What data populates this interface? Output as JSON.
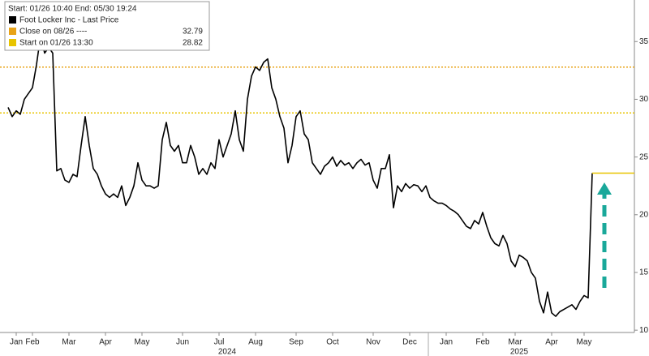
{
  "chart_data": {
    "type": "line",
    "legend_header": "Start: 01/26 10:40 End: 05/30 19:24",
    "categories": [
      null,
      null,
      "Jan",
      null,
      null,
      null,
      "Feb",
      null,
      null,
      null,
      null,
      null,
      null,
      null,
      null,
      "Mar",
      null,
      null,
      null,
      null,
      null,
      null,
      null,
      null,
      "Apr",
      null,
      null,
      null,
      null,
      null,
      null,
      null,
      null,
      "May",
      null,
      null,
      null,
      null,
      null,
      null,
      null,
      null,
      null,
      "Jun",
      null,
      null,
      null,
      null,
      null,
      null,
      null,
      null,
      "Jul",
      null,
      null,
      null,
      null,
      null,
      null,
      null,
      null,
      "Aug",
      null,
      null,
      null,
      null,
      null,
      null,
      null,
      null,
      null,
      "Sep",
      null,
      null,
      null,
      null,
      null,
      null,
      null,
      null,
      "Oct",
      null,
      null,
      null,
      null,
      null,
      null,
      null,
      null,
      null,
      "Nov",
      null,
      null,
      null,
      null,
      null,
      null,
      null,
      null,
      "Dec",
      null,
      null,
      null,
      null,
      null,
      null,
      null,
      null,
      "Jan",
      null,
      null,
      null,
      null,
      null,
      null,
      null,
      null,
      "Feb",
      null,
      null,
      null,
      null,
      null,
      null,
      null,
      "Mar",
      null,
      null,
      null,
      null,
      null,
      null,
      null,
      null,
      "Apr",
      null,
      null,
      null,
      null,
      null,
      null,
      null,
      "May",
      null,
      null
    ],
    "years": [
      "2024",
      "2025"
    ],
    "series": [
      {
        "name": "Foot Locker Inc - Last Price",
        "color": "#000000",
        "values": [
          29.3,
          28.5,
          29,
          28.7,
          30,
          30.5,
          31,
          33,
          35.5,
          34,
          34.5,
          34,
          23.8,
          24,
          23,
          22.8,
          23.5,
          23.3,
          26,
          28.5,
          26,
          24,
          23.5,
          22.5,
          21.8,
          21.5,
          21.8,
          21.5,
          22.5,
          20.8,
          21.5,
          22.5,
          24.5,
          23,
          22.5,
          22.5,
          22.3,
          22.5,
          26.5,
          28,
          26,
          25.5,
          26,
          24.5,
          24.5,
          26,
          25,
          23.5,
          24,
          23.5,
          24.5,
          24,
          26.5,
          25,
          26,
          27,
          29,
          26.5,
          25.5,
          30,
          32,
          32.8,
          32.5,
          33.2,
          33.5,
          31,
          30,
          28.5,
          27.5,
          24.5,
          26,
          28.5,
          29,
          27,
          26.5,
          24.5,
          24,
          23.5,
          24.2,
          24.5,
          25,
          24.2,
          24.7,
          24.3,
          24.5,
          24,
          24.5,
          24.8,
          24.3,
          24.5,
          23,
          22.3,
          24,
          24,
          25.2,
          20.6,
          22.5,
          22,
          22.7,
          22.3,
          22.6,
          22.5,
          22,
          22.5,
          21.5,
          21.2,
          21,
          21,
          20.8,
          20.5,
          20.3,
          20,
          19.5,
          19,
          18.8,
          19.5,
          19.2,
          20.2,
          19,
          18,
          17.5,
          17.3,
          18.2,
          17.5,
          16,
          15.5,
          16.5,
          16.3,
          16,
          15,
          14.5,
          12.5,
          11.5,
          13.3,
          11.5,
          11.2,
          11.6,
          11.8,
          12,
          12.2,
          11.8,
          12.5,
          13,
          12.8,
          23.6
        ]
      }
    ],
    "reference_lines": [
      {
        "name": "Close on 08/26 ----",
        "value": 32.79,
        "color": "#e8a317"
      },
      {
        "name": "Start on 01/26 13:30",
        "value": 28.82,
        "color": "#e8c400"
      }
    ],
    "ylim": [
      9.8,
      38.6
    ],
    "yticks": [
      10,
      15,
      20,
      25,
      30,
      35
    ],
    "grid": false
  }
}
